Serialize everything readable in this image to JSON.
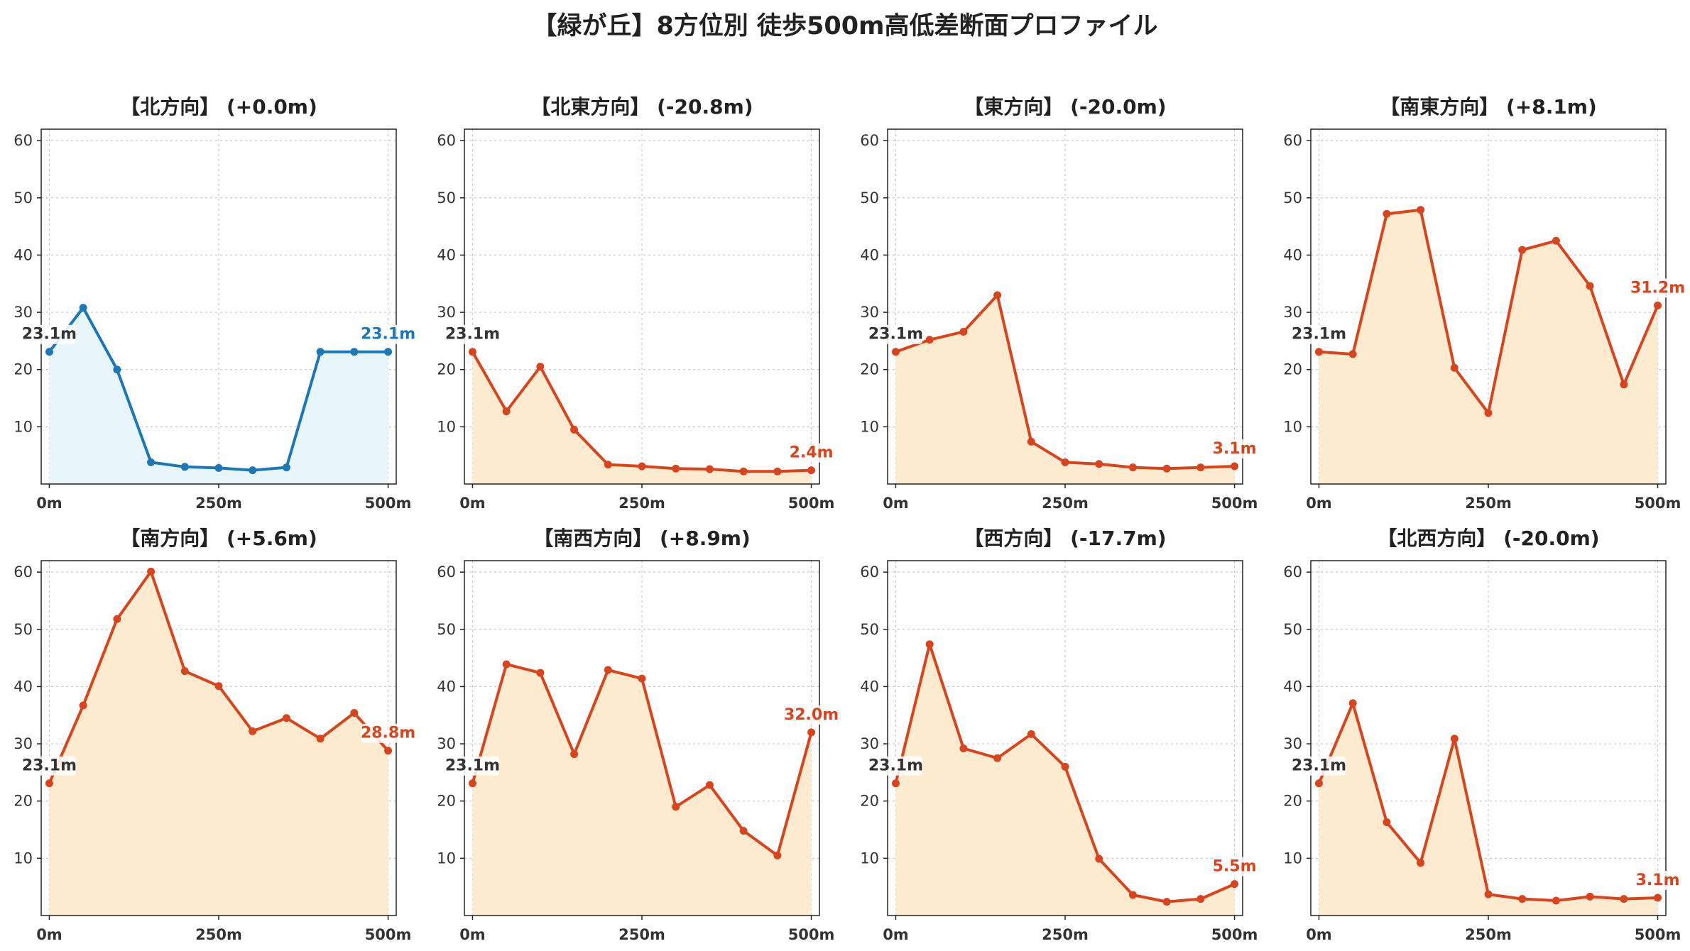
{
  "title": "【緑が丘】8方位別 徒歩500m高低差断面プロファイル",
  "colors": {
    "uphill_line": "#d9441c",
    "uphill_fill": "#fdebcf",
    "flat_line": "#1a78b8",
    "flat_fill": "#e8f5fb",
    "start_label": "#333333",
    "grid": "#c8c8c8"
  },
  "chart_data": [
    {
      "type": "area",
      "title": "【北方向】 (+0.0m)",
      "x": [
        0,
        50,
        100,
        150,
        200,
        250,
        300,
        350,
        400,
        450,
        500
      ],
      "y": [
        23.1,
        30.8,
        20.0,
        3.8,
        3.0,
        2.8,
        2.4,
        2.9,
        23.1,
        23.1,
        23.1
      ],
      "start_label": "23.1m",
      "end_label": "23.1m",
      "color": "blue",
      "xticks": [
        "0m",
        "250m",
        "500m"
      ],
      "yticks": [
        10,
        20,
        30,
        40,
        50,
        60
      ],
      "ylim": [
        0,
        62
      ],
      "xlim": [
        -12,
        512
      ],
      "grid": true
    },
    {
      "type": "area",
      "title": "【北東方向】 (-20.8m)",
      "x": [
        0,
        50,
        100,
        150,
        200,
        250,
        300,
        350,
        400,
        450,
        500
      ],
      "y": [
        23.1,
        12.7,
        20.5,
        9.5,
        3.4,
        3.1,
        2.7,
        2.6,
        2.2,
        2.2,
        2.4
      ],
      "start_label": "23.1m",
      "end_label": "2.4m",
      "color": "orange",
      "xticks": [
        "0m",
        "250m",
        "500m"
      ],
      "yticks": [
        10,
        20,
        30,
        40,
        50,
        60
      ],
      "ylim": [
        0,
        62
      ],
      "xlim": [
        -12,
        512
      ],
      "grid": true
    },
    {
      "type": "area",
      "title": "【東方向】 (-20.0m)",
      "x": [
        0,
        50,
        100,
        150,
        200,
        250,
        300,
        350,
        400,
        450,
        500
      ],
      "y": [
        23.1,
        25.2,
        26.6,
        33.0,
        7.4,
        3.8,
        3.5,
        2.9,
        2.7,
        2.9,
        3.1
      ],
      "start_label": "23.1m",
      "end_label": "3.1m",
      "color": "orange",
      "xticks": [
        "0m",
        "250m",
        "500m"
      ],
      "yticks": [
        10,
        20,
        30,
        40,
        50,
        60
      ],
      "ylim": [
        0,
        62
      ],
      "xlim": [
        -12,
        512
      ],
      "grid": true
    },
    {
      "type": "area",
      "title": "【南東方向】 (+8.1m)",
      "x": [
        0,
        50,
        100,
        150,
        200,
        250,
        300,
        350,
        400,
        450,
        500
      ],
      "y": [
        23.1,
        22.7,
        47.2,
        47.9,
        20.3,
        12.4,
        40.9,
        42.5,
        34.6,
        17.4,
        31.2
      ],
      "start_label": "23.1m",
      "end_label": "31.2m",
      "color": "orange",
      "xticks": [
        "0m",
        "250m",
        "500m"
      ],
      "yticks": [
        10,
        20,
        30,
        40,
        50,
        60
      ],
      "ylim": [
        0,
        62
      ],
      "xlim": [
        -12,
        512
      ],
      "grid": true
    },
    {
      "type": "area",
      "title": "【南方向】 (+5.6m)",
      "x": [
        0,
        50,
        100,
        150,
        200,
        250,
        300,
        350,
        400,
        450,
        500
      ],
      "y": [
        23.1,
        36.7,
        51.8,
        60.1,
        42.7,
        40.1,
        32.2,
        34.5,
        30.9,
        35.4,
        28.8
      ],
      "start_label": "23.1m",
      "end_label": "28.8m",
      "color": "orange",
      "xticks": [
        "0m",
        "250m",
        "500m"
      ],
      "yticks": [
        10,
        20,
        30,
        40,
        50,
        60
      ],
      "ylim": [
        0,
        62
      ],
      "xlim": [
        -12,
        512
      ],
      "grid": true
    },
    {
      "type": "area",
      "title": "【南西方向】 (+8.9m)",
      "x": [
        0,
        50,
        100,
        150,
        200,
        250,
        300,
        350,
        400,
        450,
        500
      ],
      "y": [
        23.1,
        43.9,
        42.4,
        28.2,
        42.9,
        41.4,
        19.0,
        22.8,
        14.8,
        10.5,
        32.0
      ],
      "start_label": "23.1m",
      "end_label": "32.0m",
      "color": "orange",
      "xticks": [
        "0m",
        "250m",
        "500m"
      ],
      "yticks": [
        10,
        20,
        30,
        40,
        50,
        60
      ],
      "ylim": [
        0,
        62
      ],
      "xlim": [
        -12,
        512
      ],
      "grid": true
    },
    {
      "type": "area",
      "title": "【西方向】 (-17.7m)",
      "x": [
        0,
        50,
        100,
        150,
        200,
        250,
        300,
        350,
        400,
        450,
        500
      ],
      "y": [
        23.1,
        47.4,
        29.2,
        27.5,
        31.7,
        26.0,
        9.9,
        3.6,
        2.4,
        2.9,
        5.5
      ],
      "start_label": "23.1m",
      "end_label": "5.5m",
      "color": "orange",
      "xticks": [
        "0m",
        "250m",
        "500m"
      ],
      "yticks": [
        10,
        20,
        30,
        40,
        50,
        60
      ],
      "ylim": [
        0,
        62
      ],
      "xlim": [
        -12,
        512
      ],
      "grid": true
    },
    {
      "type": "area",
      "title": "【北西方向】 (-20.0m)",
      "x": [
        0,
        50,
        100,
        150,
        200,
        250,
        300,
        350,
        400,
        450,
        500
      ],
      "y": [
        23.1,
        37.1,
        16.3,
        9.2,
        30.9,
        3.7,
        2.9,
        2.6,
        3.3,
        2.9,
        3.1
      ],
      "start_label": "23.1m",
      "end_label": "3.1m",
      "color": "orange",
      "xticks": [
        "0m",
        "250m",
        "500m"
      ],
      "yticks": [
        10,
        20,
        30,
        40,
        50,
        60
      ],
      "ylim": [
        0,
        62
      ],
      "xlim": [
        -12,
        512
      ],
      "grid": true
    }
  ]
}
